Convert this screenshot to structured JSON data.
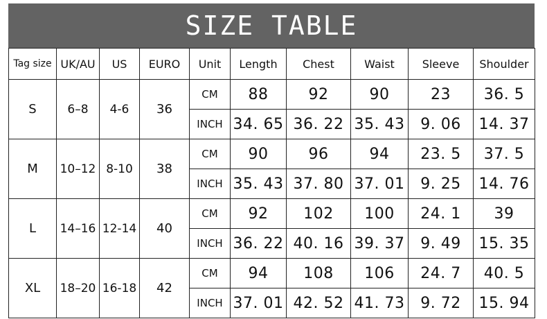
{
  "title": "SIZE TABLE",
  "headers": [
    "Tag size",
    "UK/AU",
    "US",
    "EURO",
    "Unit",
    "Length",
    "Chest",
    "Waist",
    "Sleeve",
    "Shoulder"
  ],
  "rows": [
    {
      "tag": "S",
      "uk": "6–8",
      "us": "4-6",
      "euro": "36",
      "cm": {
        "unit": "CM",
        "values": [
          "88",
          "92",
          "90",
          "23",
          "36. 5"
        ]
      },
      "inch": {
        "unit": "INCH",
        "values": [
          "34. 65",
          "36. 22",
          "35. 43",
          "9. 06",
          "14. 37"
        ]
      }
    },
    {
      "tag": "M",
      "uk": "10–12",
      "us": "8-10",
      "euro": "38",
      "cm": {
        "unit": "CM",
        "values": [
          "90",
          "96",
          "94",
          "23. 5",
          "37. 5"
        ]
      },
      "inch": {
        "unit": "INCH",
        "values": [
          "35. 43",
          "37. 80",
          "37. 01",
          "9. 25",
          "14. 76"
        ]
      }
    },
    {
      "tag": "L",
      "uk": "14–16",
      "us": "12-14",
      "euro": "40",
      "cm": {
        "unit": "CM",
        "values": [
          "92",
          "102",
          "100",
          "24. 1",
          "39"
        ]
      },
      "inch": {
        "unit": "INCH",
        "values": [
          "36. 22",
          "40. 16",
          "39. 37",
          "9. 49",
          "15. 35"
        ]
      }
    },
    {
      "tag": "XL",
      "uk": "18–20",
      "us": "16-18",
      "euro": "42",
      "cm": {
        "unit": "CM",
        "values": [
          "94",
          "108",
          "106",
          "24. 7",
          "40. 5"
        ]
      },
      "inch": {
        "unit": "INCH",
        "values": [
          "37. 01",
          "42. 52",
          "41. 73",
          "9. 72",
          "15. 94"
        ]
      }
    }
  ]
}
